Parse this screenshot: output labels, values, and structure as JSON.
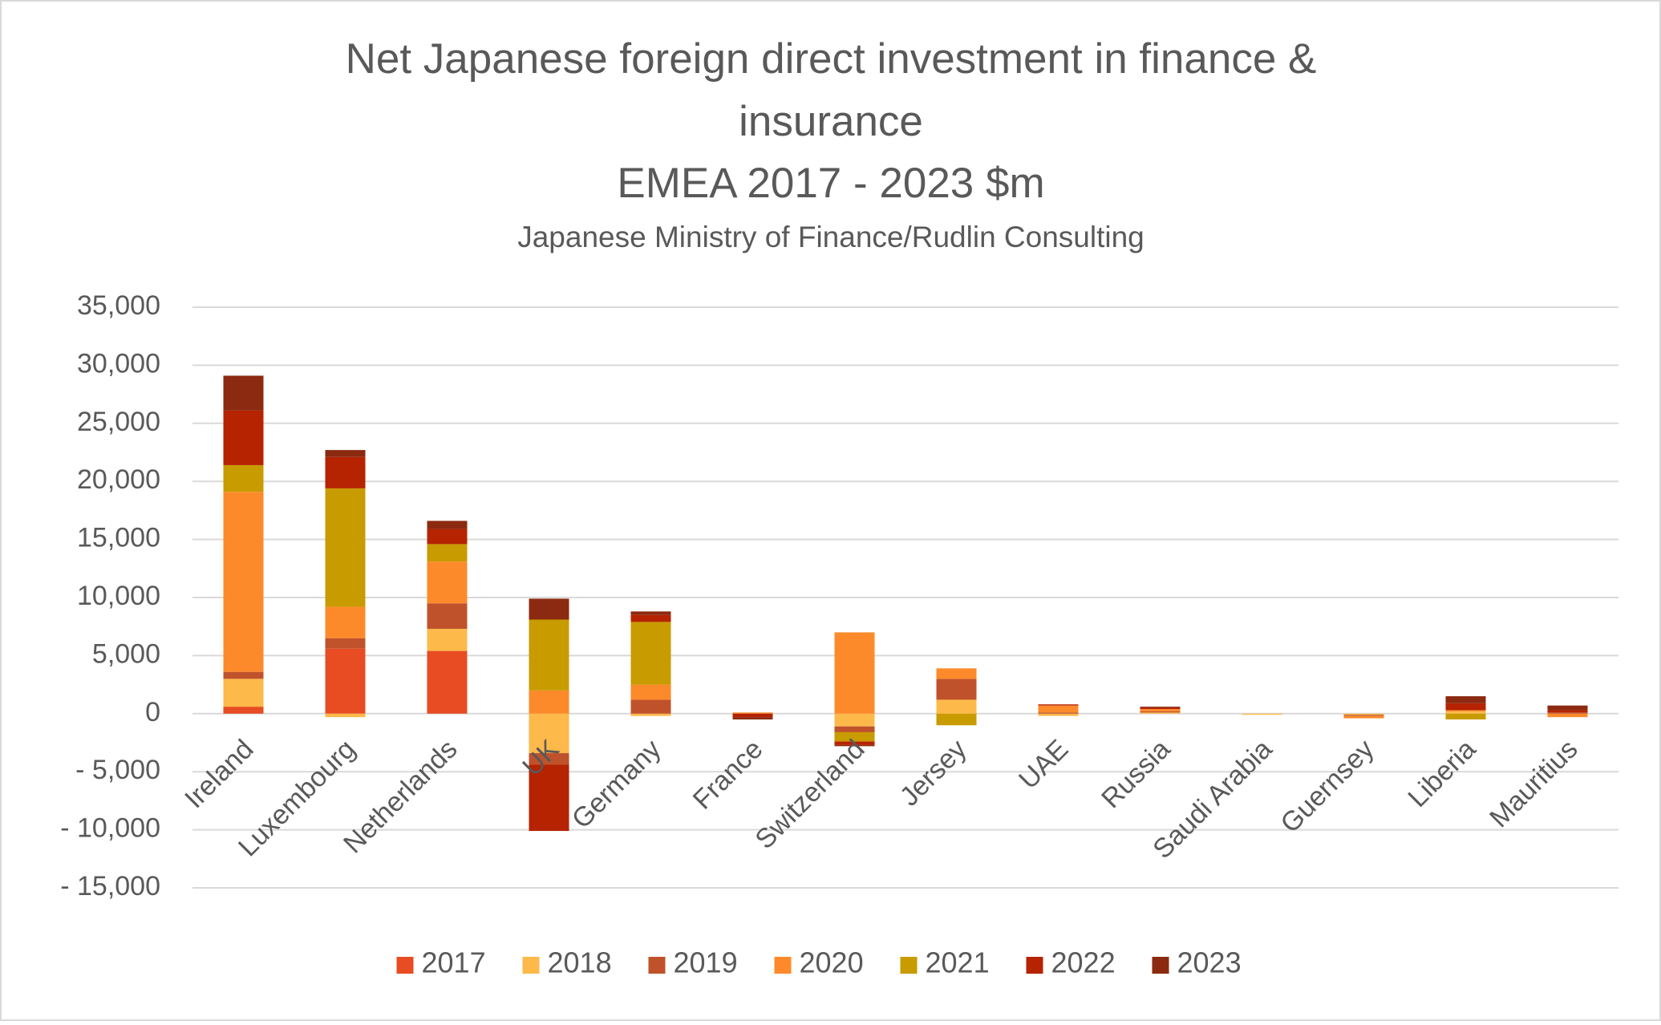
{
  "chart_data": {
    "type": "stacked-bar",
    "title": [
      "Net Japanese foreign direct investment in finance &",
      "insurance",
      "EMEA 2017 - 2023 $m"
    ],
    "subtitle": "Japanese Ministry of Finance/Rudlin Consulting",
    "categories": [
      "Ireland",
      "Luxembourg",
      "Netherlands",
      "UK",
      "Germany",
      "France",
      "Switzerland",
      "Jersey",
      "UAE",
      "Russia",
      "Saudi Arabia",
      "Guernsey",
      "Liberia",
      "Mauritius"
    ],
    "series": [
      {
        "name": "2017",
        "color": "#e84c22",
        "values": [
          600,
          5600,
          5400,
          0,
          0,
          0,
          0,
          0,
          0,
          0,
          0,
          0,
          0,
          0
        ]
      },
      {
        "name": "2018",
        "color": "#fdb94a",
        "values": [
          2400,
          -300,
          1900,
          -3400,
          -200,
          0,
          -1100,
          1200,
          -200,
          100,
          -100,
          -100,
          200,
          0
        ]
      },
      {
        "name": "2019",
        "color": "#c0522b",
        "values": [
          600,
          900,
          2200,
          -1000,
          1200,
          0,
          -500,
          1800,
          100,
          100,
          0,
          -100,
          0,
          100
        ]
      },
      {
        "name": "2020",
        "color": "#fd8a2a",
        "values": [
          15500,
          2700,
          3600,
          2000,
          1300,
          100,
          7000,
          900,
          600,
          200,
          0,
          -200,
          100,
          -300
        ]
      },
      {
        "name": "2021",
        "color": "#c89b00",
        "values": [
          2300,
          10200,
          1500,
          6100,
          5400,
          0,
          -800,
          -1000,
          0,
          0,
          0,
          0,
          -500,
          0
        ]
      },
      {
        "name": "2022",
        "color": "#b52300",
        "values": [
          4700,
          2700,
          1300,
          -5700,
          600,
          -300,
          -300,
          0,
          100,
          100,
          0,
          0,
          600,
          200
        ]
      },
      {
        "name": "2023",
        "color": "#8b2a10",
        "values": [
          3000,
          600,
          700,
          1800,
          300,
          -200,
          -100,
          0,
          0,
          100,
          0,
          0,
          600,
          400
        ]
      }
    ],
    "ylim": [
      -15000,
      35000
    ],
    "yticks": [
      {
        "value": -15000,
        "label": "- 15,000"
      },
      {
        "value": -10000,
        "label": "- 10,000"
      },
      {
        "value": -5000,
        "label": "- 5,000"
      },
      0,
      {
        "value": 5000,
        "label": "5,000"
      },
      {
        "value": 10000,
        "label": "10,000"
      },
      {
        "value": 15000,
        "label": "15,000"
      },
      {
        "value": 20000,
        "label": "20,000"
      },
      {
        "value": 25000,
        "label": "25,000"
      },
      {
        "value": 30000,
        "label": "30,000"
      },
      {
        "value": 35000,
        "label": "35,000"
      }
    ],
    "grid": true,
    "legend": "bottom"
  }
}
